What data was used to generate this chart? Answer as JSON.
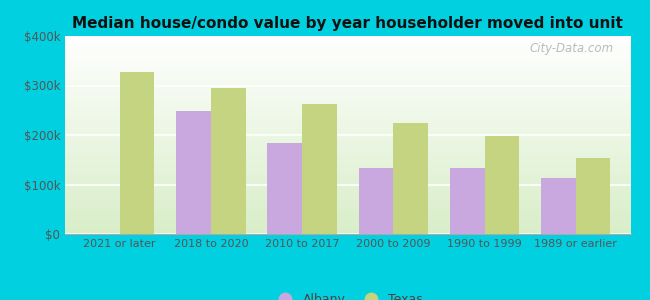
{
  "title": "Median house/condo value by year householder moved into unit",
  "categories": [
    "2021 or later",
    "2018 to 2020",
    "2010 to 2017",
    "2000 to 2009",
    "1990 to 1999",
    "1989 or earlier"
  ],
  "albany_values": [
    0,
    248000,
    183000,
    133000,
    133000,
    113000
  ],
  "texas_values": [
    328000,
    295000,
    262000,
    225000,
    198000,
    153000
  ],
  "albany_color": "#c9a8e0",
  "texas_color": "#c5d480",
  "background_top": "#ffffff",
  "background_bottom": "#d8eec8",
  "outer_background": "#00d0e0",
  "ylim": [
    0,
    400000
  ],
  "yticks": [
    0,
    100000,
    200000,
    300000,
    400000
  ],
  "ytick_labels": [
    "$0",
    "$100k",
    "$200k",
    "$300k",
    "$400k"
  ],
  "legend_albany": "Albany",
  "legend_texas": "Texas",
  "watermark": "City-Data.com",
  "bar_width": 0.38
}
